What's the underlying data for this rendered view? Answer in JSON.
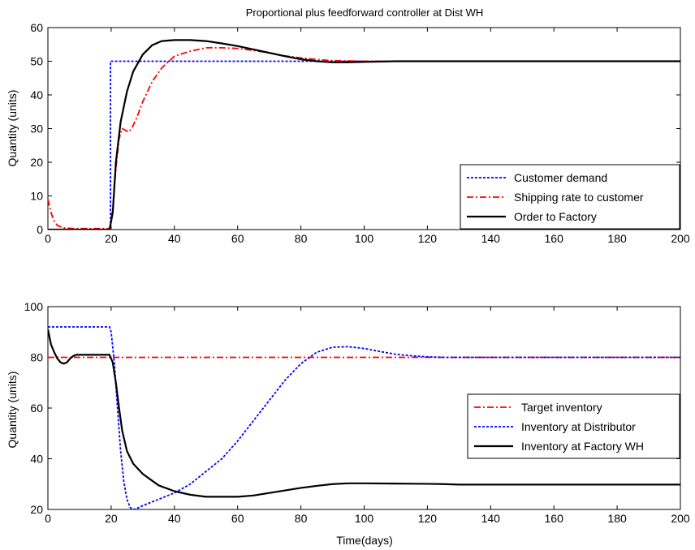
{
  "chart_data": [
    {
      "type": "line",
      "title": "Proportional plus feedforward controller at Dist WH",
      "xlabel": "",
      "ylabel": "Quantity (units)",
      "xlim": [
        0,
        200
      ],
      "ylim": [
        0,
        60
      ],
      "xticks": [
        0,
        20,
        40,
        60,
        80,
        100,
        120,
        140,
        160,
        180,
        200
      ],
      "yticks": [
        0,
        10,
        20,
        30,
        40,
        50,
        60
      ],
      "grid": false,
      "legend_position": "bottom-right",
      "series": [
        {
          "name": "Customer demand",
          "color": "#0000ff",
          "style": "dotted",
          "x": [
            0,
            19.8,
            19.8,
            200
          ],
          "y": [
            0,
            0,
            50,
            50
          ]
        },
        {
          "name": "Shipping rate to customer",
          "color": "#ff0000",
          "style": "dashdot",
          "x": [
            0,
            1,
            2,
            3,
            5,
            8,
            12,
            16,
            19.5,
            20.5,
            21.5,
            22.5,
            23.5,
            24.5,
            25.5,
            26.5,
            28,
            30,
            33,
            36,
            40,
            45,
            50,
            55,
            60,
            65,
            70,
            75,
            80,
            85,
            90,
            100,
            110,
            120,
            200
          ],
          "y": [
            9,
            5,
            2.5,
            1.2,
            0.5,
            0.3,
            0.3,
            0.3,
            0.3,
            6,
            18,
            27,
            30,
            29.5,
            29,
            30,
            33,
            38,
            44,
            48,
            51.5,
            53,
            54,
            54,
            53.8,
            53.2,
            52.5,
            51.6,
            51,
            50.5,
            50.2,
            50,
            50,
            50,
            50
          ]
        },
        {
          "name": "Order to Factory",
          "color": "#000000",
          "style": "solid",
          "x": [
            0,
            10,
            19.5,
            20.5,
            21.5,
            23,
            25,
            27,
            30,
            33,
            36,
            40,
            45,
            50,
            55,
            60,
            65,
            70,
            75,
            80,
            85,
            90,
            95,
            100,
            110,
            120,
            200
          ],
          "y": [
            0,
            0,
            0,
            5,
            20,
            32,
            41,
            47,
            52,
            54.8,
            56,
            56.3,
            56.3,
            56,
            55.3,
            54.5,
            53.5,
            52.5,
            51.5,
            50.6,
            50,
            49.7,
            49.7,
            49.8,
            50,
            50,
            50
          ]
        }
      ]
    },
    {
      "type": "line",
      "title": "",
      "xlabel": "Time(days)",
      "ylabel": "Quantity (units)",
      "xlim": [
        0,
        200
      ],
      "ylim": [
        20,
        100
      ],
      "xticks": [
        0,
        20,
        40,
        60,
        80,
        100,
        120,
        140,
        160,
        180,
        200
      ],
      "yticks": [
        20,
        40,
        60,
        80,
        100
      ],
      "grid": false,
      "legend_position": "right",
      "series": [
        {
          "name": "Target inventory",
          "color": "#ff0000",
          "style": "dashdot",
          "x": [
            0,
            200
          ],
          "y": [
            80,
            80
          ]
        },
        {
          "name": "Inventory at Distributor",
          "color": "#0000ff",
          "style": "dotted",
          "x": [
            0,
            19.5,
            20,
            21,
            22,
            23,
            24,
            25,
            26,
            27,
            28,
            30,
            33,
            36,
            40,
            45,
            50,
            55,
            60,
            65,
            70,
            75,
            80,
            85,
            90,
            95,
            100,
            105,
            110,
            115,
            120,
            125,
            130,
            140,
            150,
            160,
            200
          ],
          "y": [
            92,
            92,
            90,
            78,
            60,
            43,
            31,
            24,
            20.8,
            20,
            20.3,
            21.5,
            23,
            24.5,
            26.5,
            30,
            35,
            40,
            47,
            55,
            63,
            71,
            77.5,
            82,
            84,
            84.2,
            83.5,
            82.3,
            81.2,
            80.6,
            80.2,
            80,
            80,
            80,
            80,
            80,
            80
          ]
        },
        {
          "name": "Inventory at Factory WH",
          "color": "#000000",
          "style": "solid",
          "x": [
            0,
            1,
            2,
            3,
            4,
            5,
            6,
            7,
            8,
            9,
            12,
            15,
            19.5,
            20.5,
            21.5,
            22.5,
            23.5,
            25,
            27,
            30,
            35,
            40,
            45,
            50,
            55,
            60,
            65,
            70,
            75,
            80,
            85,
            90,
            95,
            100,
            110,
            120,
            125,
            130,
            140,
            150,
            160,
            200
          ],
          "y": [
            91,
            85,
            82,
            79.5,
            78,
            77.5,
            78,
            79.5,
            80.5,
            81,
            81,
            81,
            81,
            78,
            70,
            60,
            51,
            43,
            38,
            34,
            29.5,
            27.2,
            25.8,
            25,
            25,
            25,
            25.5,
            26.5,
            27.5,
            28.5,
            29.3,
            30,
            30.3,
            30.3,
            30.2,
            30.1,
            30,
            29.8,
            29.8,
            29.8,
            29.8,
            29.8
          ]
        }
      ]
    }
  ]
}
